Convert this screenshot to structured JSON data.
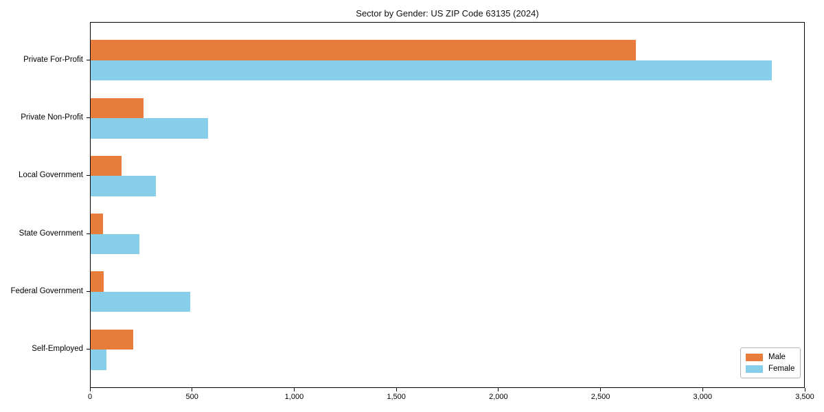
{
  "title": "Sector by Gender: US ZIP Code 63135 (2024)",
  "colors": {
    "male": "#e87d3b",
    "female": "#87ceeb",
    "axis": "#000000",
    "legend_border": "#b3b3b3",
    "background": "#ffffff"
  },
  "legend": {
    "position": "lower right",
    "items": [
      {
        "label": "Male",
        "color": "#e87d3b"
      },
      {
        "label": "Female",
        "color": "#87ceeb"
      }
    ]
  },
  "chart_data": {
    "type": "bar",
    "orientation": "horizontal",
    "title": "Sector by Gender: US ZIP Code 63135 (2024)",
    "categories": [
      "Private For-Profit",
      "Private Non-Profit",
      "Local Government",
      "State Government",
      "Federal Government",
      "Self-Employed"
    ],
    "series": [
      {
        "name": "Male",
        "color": "#e87d3b",
        "values": [
          2670,
          260,
          150,
          62,
          65,
          208
        ]
      },
      {
        "name": "Female",
        "color": "#87ceeb",
        "values": [
          3335,
          575,
          320,
          238,
          487,
          78
        ]
      }
    ],
    "xlabel": "",
    "ylabel": "",
    "xlim": [
      0,
      3500
    ],
    "xticks": [
      0,
      500,
      1000,
      1500,
      2000,
      2500,
      3000,
      3500
    ],
    "xtick_labels": [
      "0",
      "500",
      "1,000",
      "1,500",
      "2,000",
      "2,500",
      "3,000",
      "3,500"
    ],
    "grid": false,
    "legend_position": "lower right"
  }
}
